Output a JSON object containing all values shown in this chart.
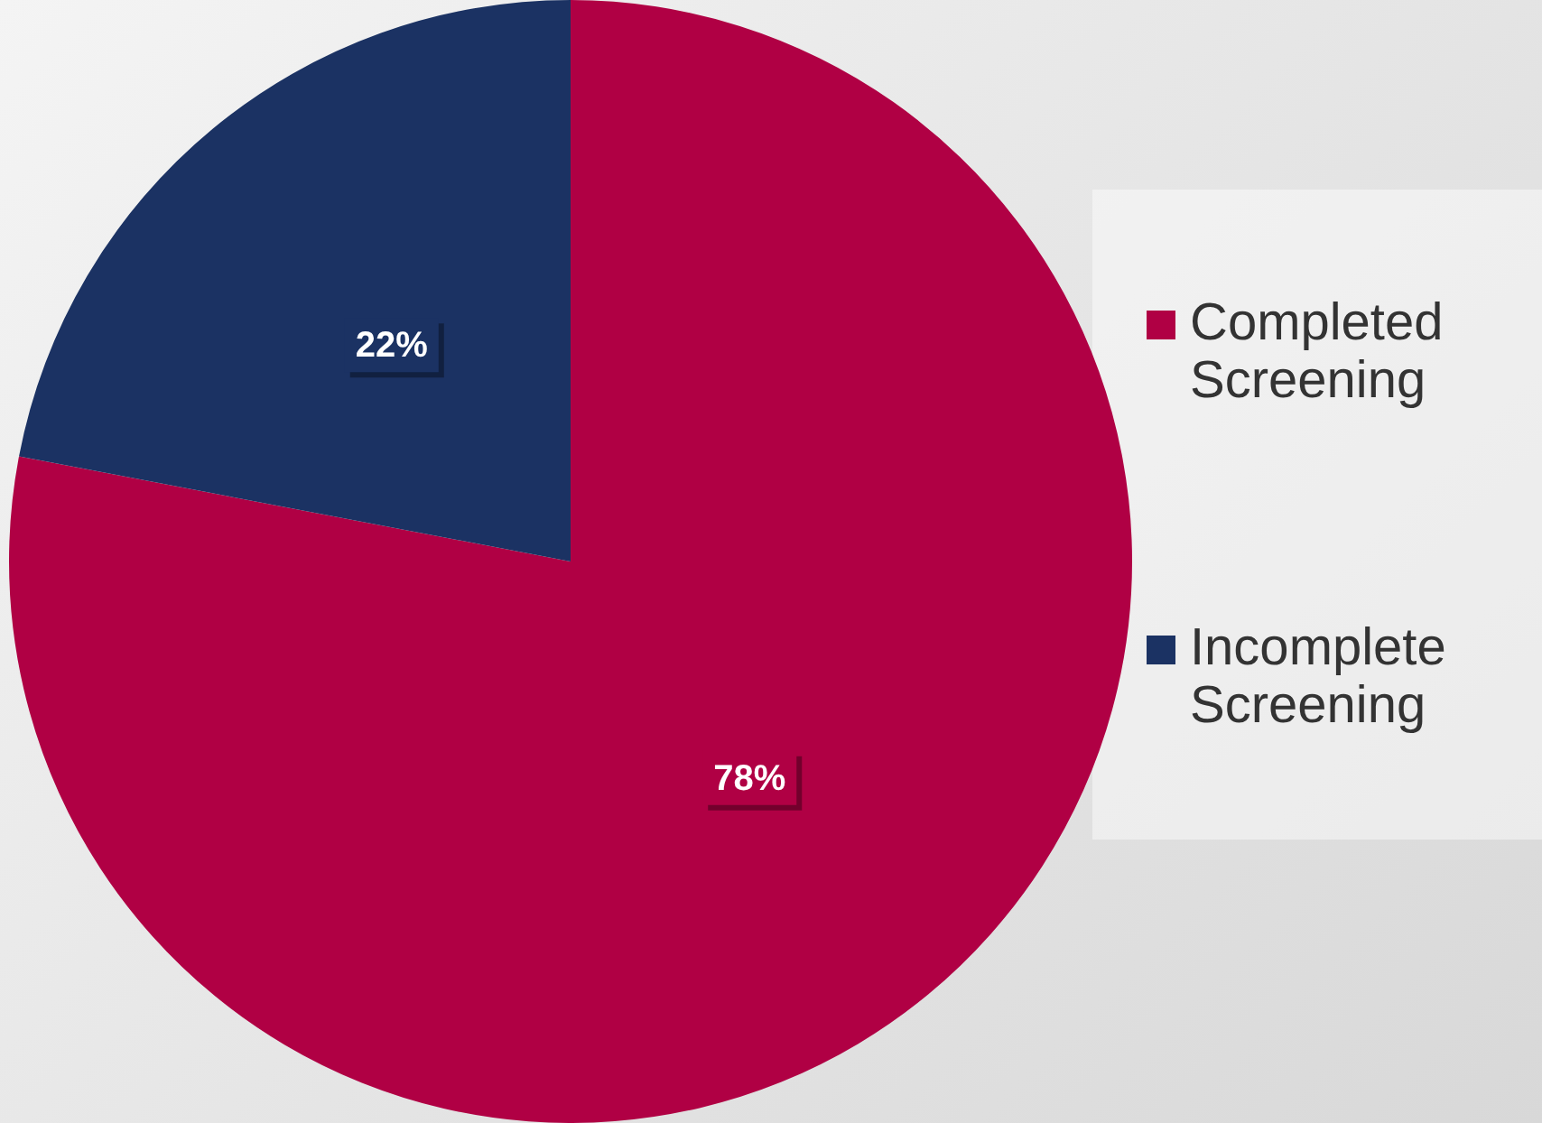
{
  "chart_data": {
    "type": "pie",
    "categories": [
      "Completed Screening",
      "Incomplete Screening"
    ],
    "values": [
      78,
      22
    ],
    "colors": [
      "#b00044",
      "#1b3263"
    ],
    "value_labels": [
      "78%",
      "22%"
    ],
    "legend": "right"
  }
}
